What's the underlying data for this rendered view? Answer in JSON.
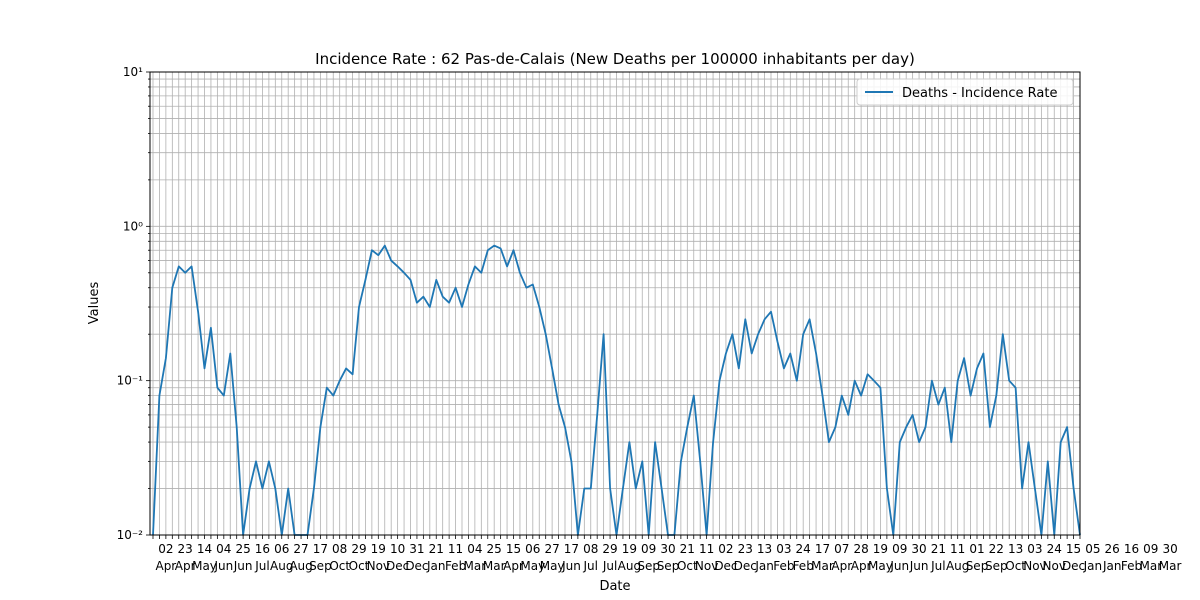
{
  "chart_data": {
    "type": "line",
    "title": "Incidence Rate : 62 Pas-de-Calais (New Deaths per 100000 inhabitants per day)",
    "xlabel": "Date",
    "ylabel": "Values",
    "yscale": "log",
    "ylim": [
      0.01,
      10
    ],
    "ytick_labels": [
      "10⁻²",
      "10⁻¹",
      "10⁰",
      "10¹"
    ],
    "grid": true,
    "legend_position": "top-right",
    "line_color": "#1f77b4",
    "xtick_labels": [
      [
        "02",
        "Apr"
      ],
      [
        "23",
        "Apr"
      ],
      [
        "14",
        "May"
      ],
      [
        "04",
        "Jun"
      ],
      [
        "25",
        "Jun"
      ],
      [
        "16",
        "Jul"
      ],
      [
        "06",
        "Aug"
      ],
      [
        "27",
        "Aug"
      ],
      [
        "17",
        "Sep"
      ],
      [
        "08",
        "Oct"
      ],
      [
        "29",
        "Oct"
      ],
      [
        "19",
        "Nov"
      ],
      [
        "10",
        "Dec"
      ],
      [
        "31",
        "Dec"
      ],
      [
        "21",
        "Jan"
      ],
      [
        "11",
        "Feb"
      ],
      [
        "04",
        "Mar"
      ],
      [
        "25",
        "Mar"
      ],
      [
        "15",
        "Apr"
      ],
      [
        "06",
        "May"
      ],
      [
        "27",
        "May"
      ],
      [
        "17",
        "Jun"
      ],
      [
        "08",
        "Jul"
      ],
      [
        "29",
        "Jul"
      ],
      [
        "19",
        "Aug"
      ],
      [
        "09",
        "Sep"
      ],
      [
        "30",
        "Sep"
      ],
      [
        "21",
        "Oct"
      ],
      [
        "11",
        "Nov"
      ],
      [
        "02",
        "Dec"
      ],
      [
        "23",
        "Dec"
      ],
      [
        "13",
        "Jan"
      ],
      [
        "03",
        "Feb"
      ],
      [
        "24",
        "Feb"
      ],
      [
        "17",
        "Mar"
      ],
      [
        "07",
        "Apr"
      ],
      [
        "28",
        "Apr"
      ],
      [
        "19",
        "May"
      ],
      [
        "09",
        "Jun"
      ],
      [
        "30",
        "Jun"
      ],
      [
        "21",
        "Jul"
      ],
      [
        "11",
        "Aug"
      ],
      [
        "01",
        "Sep"
      ],
      [
        "22",
        "Sep"
      ],
      [
        "13",
        "Oct"
      ],
      [
        "03",
        "Nov"
      ],
      [
        "24",
        "Nov"
      ],
      [
        "15",
        "Dec"
      ],
      [
        "05",
        "Jan"
      ],
      [
        "26",
        "Jan"
      ],
      [
        "16",
        "Feb"
      ],
      [
        "09",
        "Mar"
      ],
      [
        "30",
        "Mar"
      ]
    ],
    "series": [
      {
        "name": "Deaths - Incidence Rate",
        "start_date": "2020-03-19",
        "x_step_days": 7,
        "values": [
          0.01,
          0.08,
          0.14,
          0.4,
          0.55,
          0.5,
          0.55,
          0.28,
          0.12,
          0.22,
          0.09,
          0.08,
          0.15,
          0.05,
          0.01,
          0.02,
          0.03,
          0.02,
          0.03,
          0.02,
          0.01,
          0.02,
          0.01,
          0.01,
          0.01,
          0.02,
          0.05,
          0.09,
          0.08,
          0.1,
          0.12,
          0.11,
          0.3,
          0.45,
          0.7,
          0.65,
          0.75,
          0.6,
          0.55,
          0.5,
          0.45,
          0.32,
          0.35,
          0.3,
          0.45,
          0.35,
          0.32,
          0.4,
          0.3,
          0.42,
          0.55,
          0.5,
          0.7,
          0.75,
          0.72,
          0.55,
          0.7,
          0.5,
          0.4,
          0.42,
          0.3,
          0.2,
          0.12,
          0.07,
          0.05,
          0.03,
          0.01,
          0.02,
          0.02,
          0.06,
          0.2,
          0.02,
          0.01,
          0.02,
          0.04,
          0.02,
          0.03,
          0.01,
          0.04,
          0.02,
          0.01,
          0.01,
          0.03,
          0.05,
          0.08,
          0.03,
          0.01,
          0.04,
          0.1,
          0.15,
          0.2,
          0.12,
          0.25,
          0.15,
          0.2,
          0.25,
          0.28,
          0.18,
          0.12,
          0.15,
          0.1,
          0.2,
          0.25,
          0.15,
          0.08,
          0.04,
          0.05,
          0.08,
          0.06,
          0.1,
          0.08,
          0.11,
          0.1,
          0.09,
          0.02,
          0.01,
          0.04,
          0.05,
          0.06,
          0.04,
          0.05,
          0.1,
          0.07,
          0.09,
          0.04,
          0.1,
          0.14,
          0.08,
          0.12,
          0.15,
          0.05,
          0.08,
          0.2,
          0.1,
          0.09,
          0.02,
          0.04,
          0.02,
          0.01,
          0.03,
          0.01,
          0.04,
          0.05,
          0.02,
          0.01
        ]
      }
    ]
  }
}
